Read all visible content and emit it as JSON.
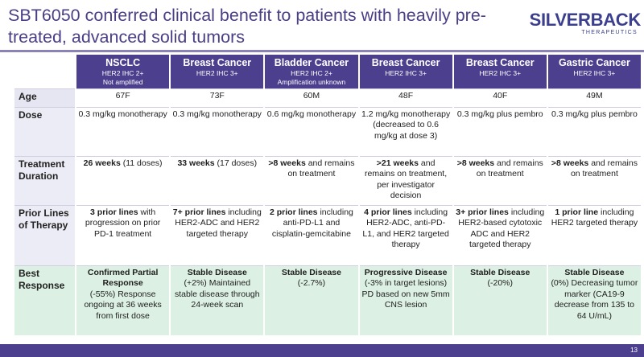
{
  "title": "SBT6050 conferred clinical benefit to patients with heavily pre-treated, advanced solid tumors",
  "logo": {
    "name_main": "SILVERBACK",
    "name_accent": "",
    "subtitle": "THERAPEUTICS"
  },
  "columns": [
    {
      "name": "NSCLC",
      "sub1": "HER2 IHC 2+",
      "sub2": "Not amplified"
    },
    {
      "name": "Breast Cancer",
      "sub1": "HER2 IHC 3+",
      "sub2": ""
    },
    {
      "name": "Bladder Cancer",
      "sub1": "HER2 IHC 2+",
      "sub2": "Amplification unknown"
    },
    {
      "name": "Breast Cancer",
      "sub1": "HER2 IHC 3+",
      "sub2": ""
    },
    {
      "name": "Breast Cancer",
      "sub1": "HER2 IHC 3+",
      "sub2": ""
    },
    {
      "name": "Gastric Cancer",
      "sub1": "HER2 IHC 3+",
      "sub2": ""
    }
  ],
  "rows": {
    "age": {
      "label": "Age",
      "values": [
        "67F",
        "73F",
        "60M",
        "48F",
        "40F",
        "49M"
      ]
    },
    "dose": {
      "label": "Dose",
      "values": [
        "0.3 mg/kg monotherapy",
        "0.3 mg/kg monotherapy",
        "0.6 mg/kg monotherapy",
        "1.2 mg/kg monotherapy (decreased to 0.6 mg/kg at dose 3)",
        "0.3 mg/kg plus pembro",
        "0.3 mg/kg plus pembro"
      ]
    },
    "duration": {
      "label": "Treatment Duration",
      "cells": [
        {
          "bold": "26 weeks",
          "rest": "(11 doses)"
        },
        {
          "bold": "33 weeks",
          "rest": "(17 doses)"
        },
        {
          "bold": ">8 weeks",
          "rest": "and remains on treatment"
        },
        {
          "bold": ">21 weeks",
          "rest": "and remains on treatment, per investigator decision"
        },
        {
          "bold": ">8 weeks",
          "rest": "and remains on treatment"
        },
        {
          "bold": ">8 weeks",
          "rest": "and remains on treatment"
        }
      ]
    },
    "prior": {
      "label": "Prior Lines of Therapy",
      "cells": [
        {
          "bold": "3 prior lines",
          "rest": "with progression on prior PD-1 treatment"
        },
        {
          "bold": "7+ prior lines",
          "rest": "including HER2-ADC and HER2 targeted therapy"
        },
        {
          "bold": "2 prior lines",
          "rest": "including anti-PD-L1 and cisplatin-gemcitabine"
        },
        {
          "bold": "4 prior lines",
          "rest": "including HER2-ADC, anti-PD-L1, and HER2 targeted therapy"
        },
        {
          "bold": "3+ prior lines",
          "rest": "including HER2-based cytotoxic ADC and HER2 targeted therapy"
        },
        {
          "bold": "1 prior line",
          "rest": "including HER2 targeted therapy"
        }
      ]
    },
    "response": {
      "label": "Best Response",
      "cells": [
        {
          "bold": "Confirmed Partial Response",
          "rest": "(-55%) Response ongoing at 36 weeks from first dose"
        },
        {
          "bold": "Stable Disease",
          "rest": "(+2%) Maintained stable disease through 24-week scan"
        },
        {
          "bold": "Stable Disease",
          "rest": "(-2.7%)"
        },
        {
          "bold": "Progressive Disease",
          "rest": "(-3% in target lesions) PD based on new 5mm CNS lesion"
        },
        {
          "bold": "Stable Disease",
          "rest": "(-20%)"
        },
        {
          "bold": "Stable Disease",
          "rest": "(0%) Decreasing tumor marker (CA19-9 decrease from 135 to 64 U/mL)"
        }
      ]
    }
  },
  "page_number": "13"
}
